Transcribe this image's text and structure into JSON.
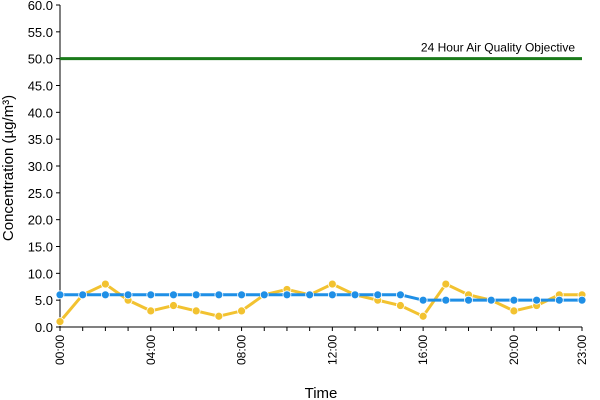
{
  "chart_data": {
    "type": "line",
    "xlabel": "Time",
    "ylabel": "Concentration (µg/m³)",
    "ylim": [
      0,
      60
    ],
    "yticks": [
      "0.0",
      "5.0",
      "10.0",
      "15.0",
      "20.0",
      "25.0",
      "30.0",
      "35.0",
      "40.0",
      "45.0",
      "50.0",
      "55.0",
      "60.0"
    ],
    "x": [
      0,
      1,
      2,
      3,
      4,
      5,
      6,
      7,
      8,
      9,
      10,
      11,
      12,
      13,
      14,
      15,
      16,
      17,
      18,
      19,
      20,
      21,
      22,
      23
    ],
    "xticks": [
      {
        "x": 0,
        "label": "00:00"
      },
      {
        "x": 4,
        "label": "04:00"
      },
      {
        "x": 8,
        "label": "08:00"
      },
      {
        "x": 12,
        "label": "12:00"
      },
      {
        "x": 16,
        "label": "16:00"
      },
      {
        "x": 20,
        "label": "20:00"
      },
      {
        "x": 23,
        "label": "23:00"
      }
    ],
    "series": [
      {
        "color": "#f2c230",
        "marker_color": "#f2c230",
        "values": [
          1,
          6,
          8,
          5,
          3,
          4,
          3,
          2,
          3,
          6,
          7,
          6,
          8,
          6,
          5,
          4,
          2,
          8,
          6,
          5,
          3,
          4,
          6,
          6
        ]
      },
      {
        "color": "#1f8fe6",
        "marker_color": "#1f8fe6",
        "values": [
          6,
          6,
          6,
          6,
          6,
          6,
          6,
          6,
          6,
          6,
          6,
          6,
          6,
          6,
          6,
          6,
          5,
          5,
          5,
          5,
          5,
          5,
          5,
          5
        ]
      }
    ],
    "objective": {
      "value": 50,
      "label": "24 Hour Air Quality Objective",
      "color": "#1a7a1a"
    },
    "grid": false
  }
}
